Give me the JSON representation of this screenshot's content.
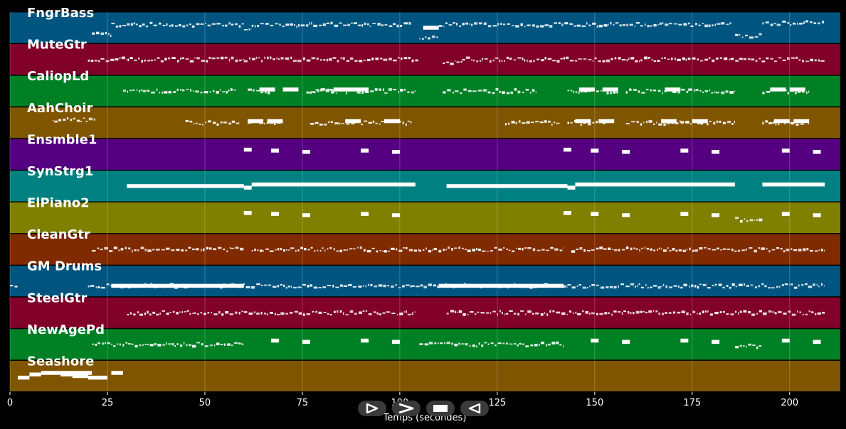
{
  "chart_data": {
    "type": "piano-roll",
    "xlabel": "Temps (secondes)",
    "xlim": [
      0,
      213
    ],
    "xticks": [
      0,
      25,
      50,
      75,
      100,
      125,
      150,
      175,
      200
    ],
    "grid": true,
    "tracks": [
      {
        "name": "FngrBass",
        "color": "#005580",
        "segments": [
          [
            21,
            26,
            0.7
          ],
          [
            26,
            60,
            0.4
          ],
          [
            60,
            62,
            0.5
          ],
          [
            62,
            103,
            0.4
          ],
          [
            105,
            110,
            0.8
          ],
          [
            110,
            185,
            0.4
          ],
          [
            186,
            193,
            0.75
          ],
          [
            193,
            209,
            0.35
          ]
        ],
        "blocks": [
          [
            106,
            110,
            0.5
          ]
        ]
      },
      {
        "name": "MuteGtr",
        "color": "#80002a",
        "segments": [
          [
            20,
            60,
            0.5
          ],
          [
            60,
            105,
            0.5
          ],
          [
            111,
            116,
            0.6
          ],
          [
            116,
            209,
            0.5
          ]
        ],
        "blocks": []
      },
      {
        "name": "CaliopLd",
        "color": "#008025",
        "segments": [
          [
            29,
            58,
            0.5
          ],
          [
            61,
            68,
            0.5
          ],
          [
            76,
            83,
            0.5
          ],
          [
            77,
            96,
            0.5
          ],
          [
            96,
            104,
            0.5
          ],
          [
            111,
            135,
            0.5
          ],
          [
            143,
            156,
            0.5
          ],
          [
            158,
            174,
            0.5
          ],
          [
            174,
            186,
            0.5
          ],
          [
            193,
            205,
            0.5
          ]
        ],
        "blocks": [
          [
            64,
            68,
            0.45
          ],
          [
            70,
            74,
            0.45
          ],
          [
            83,
            88,
            0.45
          ],
          [
            88,
            92,
            0.45
          ],
          [
            146,
            150,
            0.45
          ],
          [
            152,
            156,
            0.45
          ],
          [
            168,
            172,
            0.45
          ],
          [
            195,
            199,
            0.45
          ],
          [
            200,
            204,
            0.45
          ]
        ]
      },
      {
        "name": "AahChoir",
        "color": "#805500",
        "segments": [
          [
            11,
            22,
            0.4
          ],
          [
            45,
            59,
            0.5
          ],
          [
            61,
            70,
            0.5
          ],
          [
            77,
            90,
            0.5
          ],
          [
            90,
            103,
            0.5
          ],
          [
            127,
            141,
            0.5
          ],
          [
            143,
            153,
            0.5
          ],
          [
            158,
            172,
            0.5
          ],
          [
            172,
            186,
            0.5
          ],
          [
            193,
            205,
            0.5
          ]
        ],
        "blocks": [
          [
            61,
            65,
            0.45
          ],
          [
            66,
            70,
            0.45
          ],
          [
            86,
            90,
            0.45
          ],
          [
            96,
            100,
            0.45
          ],
          [
            145,
            149,
            0.45
          ],
          [
            151,
            155,
            0.45
          ],
          [
            167,
            171,
            0.45
          ],
          [
            175,
            179,
            0.45
          ],
          [
            196,
            200,
            0.45
          ],
          [
            201,
            205,
            0.45
          ]
        ]
      },
      {
        "name": "Ensmble1",
        "color": "#550080",
        "segments": [],
        "blocks": [
          [
            60,
            62,
            0.35
          ],
          [
            67,
            69,
            0.38
          ],
          [
            75,
            77,
            0.42
          ],
          [
            90,
            92,
            0.38
          ],
          [
            98,
            100,
            0.42
          ],
          [
            142,
            144,
            0.35
          ],
          [
            149,
            151,
            0.38
          ],
          [
            157,
            159,
            0.42
          ],
          [
            172,
            174,
            0.38
          ],
          [
            180,
            182,
            0.42
          ],
          [
            198,
            200,
            0.38
          ],
          [
            206,
            208,
            0.42
          ]
        ]
      },
      {
        "name": "SynStrg1",
        "color": "#008080",
        "segments": [],
        "blocks": [
          [
            30,
            60,
            0.5
          ],
          [
            60,
            62,
            0.55
          ],
          [
            62,
            104,
            0.45
          ],
          [
            112,
            143,
            0.5
          ],
          [
            143,
            145,
            0.55
          ],
          [
            145,
            186,
            0.45
          ],
          [
            193,
            209,
            0.45
          ]
        ]
      },
      {
        "name": "ElPiano2",
        "color": "#808000",
        "segments": [
          [
            186,
            193,
            0.55
          ]
        ],
        "blocks": [
          [
            60,
            62,
            0.35
          ],
          [
            67,
            69,
            0.38
          ],
          [
            75,
            77,
            0.42
          ],
          [
            90,
            92,
            0.38
          ],
          [
            98,
            100,
            0.42
          ],
          [
            142,
            144,
            0.35
          ],
          [
            149,
            151,
            0.38
          ],
          [
            157,
            159,
            0.42
          ],
          [
            172,
            174,
            0.38
          ],
          [
            180,
            182,
            0.42
          ],
          [
            198,
            200,
            0.38
          ],
          [
            206,
            208,
            0.42
          ]
        ]
      },
      {
        "name": "CleanGtr",
        "color": "#802a00",
        "segments": [
          [
            21,
            60,
            0.5
          ],
          [
            62,
            105,
            0.5
          ],
          [
            105,
            142,
            0.5
          ],
          [
            144,
            209,
            0.5
          ]
        ],
        "blocks": []
      },
      {
        "name": "GM Drums",
        "color": "#005580",
        "segments": [
          [
            0,
            2,
            0.65
          ],
          [
            20,
            26,
            0.65
          ],
          [
            26,
            103,
            0.65
          ],
          [
            103,
            143,
            0.65
          ],
          [
            143,
            209,
            0.65
          ]
        ],
        "blocks": [
          [
            26,
            60,
            0.65
          ],
          [
            110,
            142,
            0.65
          ]
        ]
      },
      {
        "name": "SteelGtr",
        "color": "#80002a",
        "segments": [
          [
            30,
            104,
            0.5
          ],
          [
            112,
            209,
            0.5
          ]
        ],
        "blocks": []
      },
      {
        "name": "NewAgePd",
        "color": "#008025",
        "segments": [
          [
            21,
            60,
            0.5
          ],
          [
            105,
            142,
            0.5
          ],
          [
            186,
            193,
            0.55
          ]
        ],
        "blocks": [
          [
            67,
            69,
            0.38
          ],
          [
            75,
            77,
            0.42
          ],
          [
            90,
            92,
            0.38
          ],
          [
            98,
            100,
            0.42
          ],
          [
            149,
            151,
            0.38
          ],
          [
            157,
            159,
            0.42
          ],
          [
            172,
            174,
            0.38
          ],
          [
            180,
            182,
            0.42
          ],
          [
            198,
            200,
            0.38
          ],
          [
            206,
            208,
            0.42
          ]
        ]
      },
      {
        "name": "Seashore",
        "color": "#805500",
        "segments": [],
        "blocks": [
          [
            2,
            5,
            0.55
          ],
          [
            5,
            8,
            0.45
          ],
          [
            8,
            13,
            0.4
          ],
          [
            13,
            16,
            0.45
          ],
          [
            13,
            21,
            0.4
          ],
          [
            16,
            20,
            0.5
          ],
          [
            20,
            25,
            0.55
          ],
          [
            26,
            29,
            0.4
          ]
        ]
      }
    ]
  },
  "controls": {
    "play_label": "play",
    "forward_label": "forward",
    "stop_label": "stop",
    "back_label": "back"
  }
}
